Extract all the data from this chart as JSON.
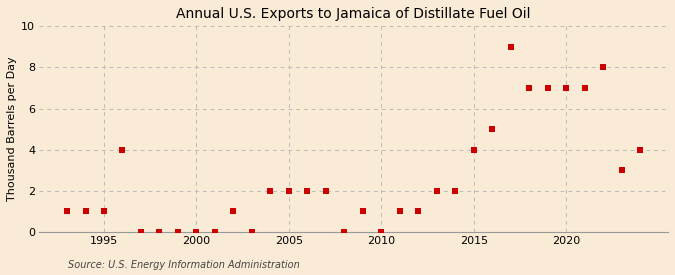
{
  "title": "Annual U.S. Exports to Jamaica of Distillate Fuel Oil",
  "ylabel": "Thousand Barrels per Day",
  "source": "Source: U.S. Energy Information Administration",
  "background_color": "#faebd7",
  "marker_color": "#cc0000",
  "years": [
    1993,
    1994,
    1995,
    1996,
    1997,
    1998,
    1999,
    2000,
    2001,
    2002,
    2003,
    2004,
    2005,
    2006,
    2007,
    2008,
    2009,
    2010,
    2011,
    2012,
    2013,
    2014,
    2015,
    2016,
    2017,
    2018,
    2019,
    2020,
    2021,
    2022,
    2023,
    2024
  ],
  "values": [
    1,
    1,
    1,
    4,
    0,
    0,
    0,
    0,
    0,
    1,
    0,
    2,
    2,
    2,
    2,
    0,
    1,
    0,
    1,
    1,
    2,
    2,
    4,
    5,
    9,
    7,
    7,
    7,
    7,
    8,
    3,
    4
  ],
  "ylim": [
    0,
    10
  ],
  "yticks": [
    0,
    2,
    4,
    6,
    8,
    10
  ],
  "xticks": [
    1995,
    2000,
    2005,
    2010,
    2015,
    2020
  ],
  "xlim": [
    1991.5,
    2025.5
  ],
  "grid_color": "#bbbbbb",
  "title_fontsize": 10,
  "label_fontsize": 8,
  "tick_fontsize": 8,
  "source_fontsize": 7,
  "marker_size": 16
}
